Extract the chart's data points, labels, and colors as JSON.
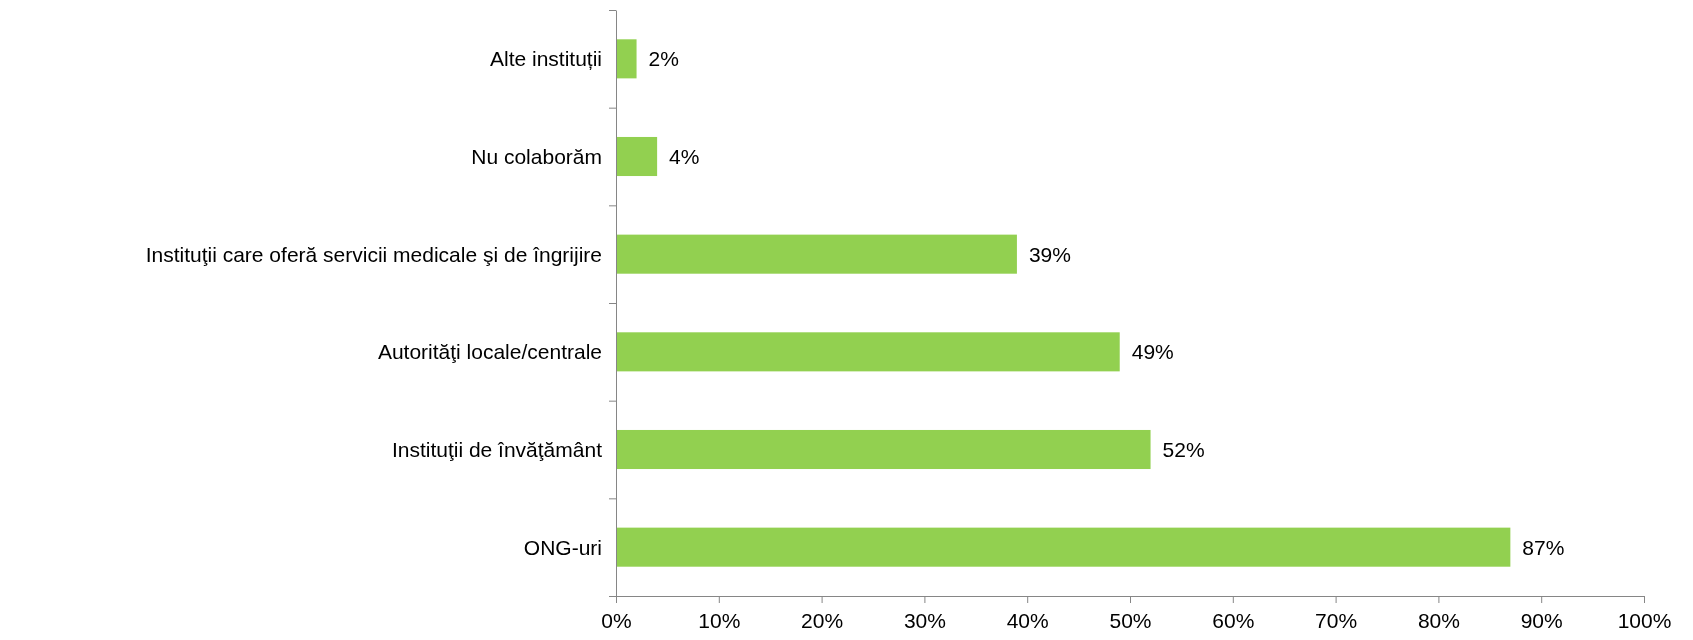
{
  "chart_data": {
    "type": "bar",
    "orientation": "horizontal",
    "categories": [
      "Alte instituții",
      "Nu colaborăm",
      "Instituţii care oferă servicii medicale şi de îngrijire",
      "Autorităţi locale/centrale",
      "Instituţii de învăţământ",
      "ONG-uri"
    ],
    "values": [
      2,
      4,
      39,
      49,
      52,
      87
    ],
    "value_labels": [
      "2%",
      "4%",
      "39%",
      "49%",
      "52%",
      "87%"
    ],
    "color": "#92d050",
    "xlim": [
      0,
      100
    ],
    "xticks": [
      {
        "value": 0,
        "label": "0%"
      },
      {
        "value": 10,
        "label": "10%"
      },
      {
        "value": 20,
        "label": "20%"
      },
      {
        "value": 30,
        "label": "30%"
      },
      {
        "value": 40,
        "label": "40%"
      },
      {
        "value": 50,
        "label": "50%"
      },
      {
        "value": 60,
        "label": "60%"
      },
      {
        "value": 70,
        "label": "70%"
      },
      {
        "value": 80,
        "label": "80%"
      },
      {
        "value": 90,
        "label": "90%"
      },
      {
        "value": 100,
        "label": "100%"
      }
    ],
    "grid": false
  }
}
